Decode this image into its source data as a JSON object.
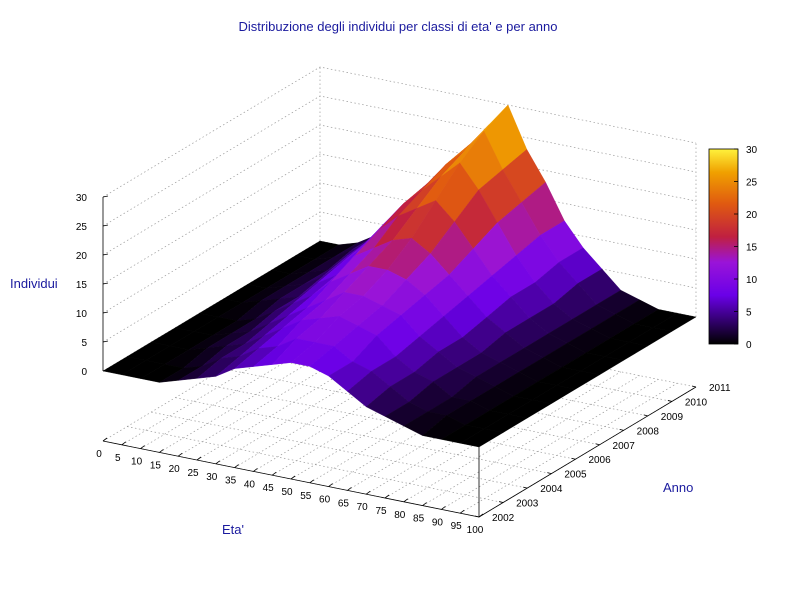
{
  "chart_data": {
    "type": "surface3d",
    "title": "Distribuzione degli individui per classi di eta' e per anno",
    "xlabel": "Eta'",
    "ylabel": "Anno",
    "zlabel": "Individui",
    "x_ticks": [
      "0",
      "5",
      "10",
      "15",
      "20",
      "25",
      "30",
      "35",
      "40",
      "45",
      "50",
      "55",
      "60",
      "65",
      "70",
      "75",
      "80",
      "85",
      "90",
      "95",
      "100"
    ],
    "y_ticks": [
      "2002",
      "2003",
      "2004",
      "2005",
      "2006",
      "2007",
      "2008",
      "2009",
      "2010",
      "2011"
    ],
    "z_ticks": [
      "0",
      "5",
      "10",
      "15",
      "20",
      "25",
      "30"
    ],
    "zlim": [
      0,
      30
    ],
    "colorbar": {
      "ticks": [
        "0",
        "5",
        "10",
        "15",
        "20",
        "25",
        "30"
      ],
      "range": [
        0,
        30
      ],
      "palette": "black-purple-red-orange-yellow"
    },
    "ages": [
      0,
      5,
      10,
      15,
      20,
      25,
      30,
      35,
      40,
      45,
      50,
      55,
      60,
      65,
      70,
      75,
      80,
      85,
      90,
      95,
      100
    ],
    "years": [
      2002,
      2003,
      2004,
      2005,
      2006,
      2007,
      2008,
      2009,
      2010,
      2011
    ],
    "z": [
      [
        0,
        0,
        0,
        0,
        1,
        2,
        3,
        5,
        6,
        7,
        8,
        8,
        7,
        5,
        3,
        2,
        1,
        0,
        0,
        0,
        0
      ],
      [
        0,
        0,
        0,
        0,
        1,
        3,
        4,
        6,
        7,
        9,
        9,
        9,
        7,
        6,
        4,
        2,
        1,
        1,
        0,
        0,
        0
      ],
      [
        0,
        0,
        0,
        1,
        2,
        3,
        5,
        7,
        9,
        10,
        11,
        10,
        9,
        6,
        4,
        3,
        1,
        1,
        0,
        0,
        0
      ],
      [
        0,
        0,
        0,
        1,
        2,
        4,
        6,
        8,
        10,
        12,
        12,
        11,
        10,
        7,
        5,
        3,
        2,
        1,
        0,
        0,
        0
      ],
      [
        0,
        0,
        0,
        1,
        3,
        5,
        7,
        10,
        12,
        14,
        14,
        13,
        11,
        8,
        5,
        3,
        2,
        1,
        0,
        0,
        0
      ],
      [
        0,
        0,
        1,
        2,
        3,
        6,
        8,
        12,
        14,
        16,
        17,
        15,
        12,
        9,
        6,
        4,
        2,
        1,
        0,
        0,
        0
      ],
      [
        0,
        0,
        1,
        2,
        4,
        7,
        10,
        14,
        17,
        19,
        21,
        18,
        14,
        10,
        7,
        4,
        2,
        1,
        0,
        0,
        0
      ],
      [
        0,
        0,
        1,
        2,
        5,
        8,
        12,
        16,
        19,
        22,
        25,
        21,
        16,
        11,
        7,
        4,
        2,
        1,
        0,
        0,
        0
      ],
      [
        0,
        0,
        1,
        3,
        5,
        9,
        13,
        17,
        21,
        24,
        28,
        22,
        17,
        12,
        8,
        5,
        2,
        1,
        0,
        0,
        0
      ],
      [
        0,
        0,
        1,
        3,
        6,
        10,
        14,
        18,
        22,
        26,
        30,
        23,
        18,
        12,
        8,
        5,
        2,
        1,
        0,
        0,
        0
      ]
    ]
  }
}
